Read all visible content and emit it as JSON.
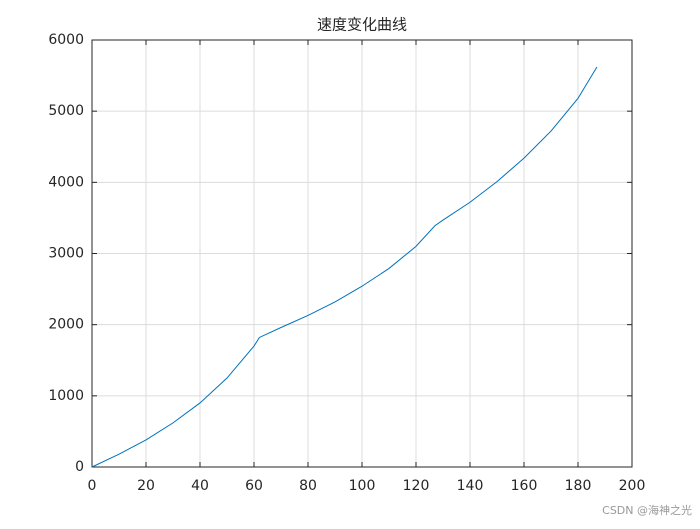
{
  "chart_data": {
    "type": "line",
    "title": "速度变化曲线",
    "x": [
      0,
      10,
      20,
      30,
      40,
      50,
      60,
      62,
      70,
      80,
      90,
      100,
      110,
      120,
      127,
      130,
      140,
      150,
      160,
      170,
      180,
      187
    ],
    "series": [
      {
        "color": "#0072bd",
        "values": [
          0,
          180,
          380,
          620,
          900,
          1250,
          1700,
          1820,
          1960,
          2130,
          2320,
          2540,
          2790,
          3100,
          3390,
          3470,
          3720,
          4010,
          4340,
          4720,
          5180,
          5620
        ]
      }
    ],
    "xlim": [
      0,
      200
    ],
    "xticks": [
      0,
      20,
      40,
      60,
      80,
      100,
      120,
      140,
      160,
      180,
      200
    ],
    "ylim": [
      0,
      6000
    ],
    "yticks": [
      0,
      1000,
      2000,
      3000,
      4000,
      5000,
      6000
    ],
    "grid": true
  },
  "watermark": "CSDN @海神之光"
}
